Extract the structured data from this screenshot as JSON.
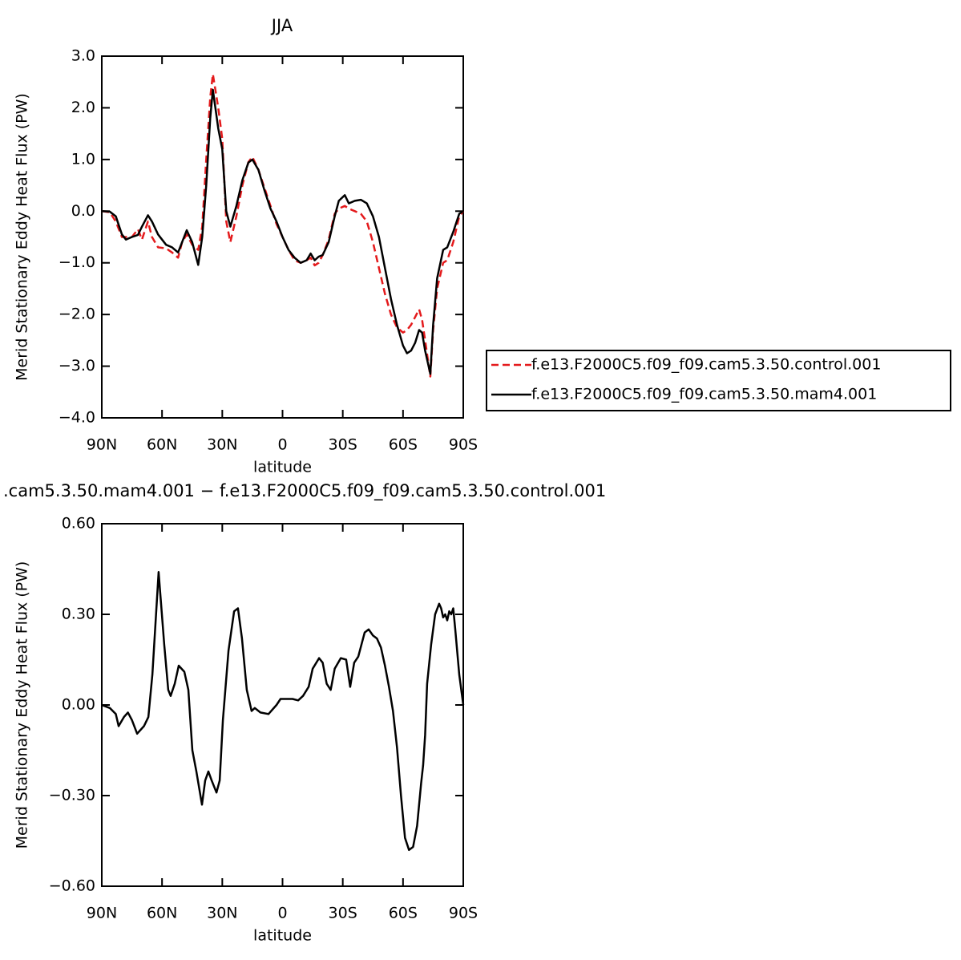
{
  "chart_data": [
    {
      "type": "line",
      "title": "JJA",
      "xlabel": "latitude",
      "ylabel": "Merid Stationary Eddy Heat Flux (PW)",
      "xlim": [
        90,
        -90
      ],
      "xticks": [
        {
          "value": 90,
          "label": "90N"
        },
        {
          "value": 60,
          "label": "60N"
        },
        {
          "value": 30,
          "label": "30N"
        },
        0,
        {
          "value": -30,
          "label": "30S"
        },
        {
          "value": -60,
          "label": "60S"
        },
        {
          "value": -90,
          "label": "90S"
        }
      ],
      "ylim": [
        -4,
        3
      ],
      "yticks": [
        {
          "value": 3,
          "label": "3.0"
        },
        {
          "value": 2,
          "label": "2.0"
        },
        {
          "value": 1,
          "label": "1.0"
        },
        {
          "value": 0,
          "label": "0.0"
        },
        {
          "value": -1,
          "label": "−1.0"
        },
        {
          "value": -2,
          "label": "−2.0"
        },
        {
          "value": -3,
          "label": "−3.0"
        },
        {
          "value": -4,
          "label": "−4.0"
        }
      ],
      "legend": "outside right",
      "x": [
        90,
        86,
        83,
        80,
        78,
        75,
        72,
        70,
        67,
        65,
        62,
        58,
        55,
        52,
        50,
        47.7,
        45,
        42,
        40,
        38,
        36,
        34.7,
        32,
        30,
        28,
        26,
        23,
        20,
        17,
        15,
        12,
        9,
        6,
        3,
        0,
        -3,
        -6,
        -9,
        -12,
        -14,
        -16,
        -18,
        -20,
        -23,
        -26,
        -28,
        -31,
        -33,
        -36,
        -39,
        -42,
        -45,
        -48,
        -51,
        -54,
        -57,
        -60,
        -62,
        -64,
        -66,
        -68,
        -69.5,
        -71,
        -73.6,
        -75,
        -77,
        -80,
        -82,
        -85,
        -88,
        -90
      ],
      "series": [
        {
          "name": "f.e13.F2000C5.f09_f09.cam5.3.50.control.001",
          "color": "#e41a1c",
          "linestyle": "dashed",
          "values": [
            0,
            -0.02,
            -0.2,
            -0.5,
            -0.5,
            -0.5,
            -0.35,
            -0.55,
            -0.2,
            -0.5,
            -0.7,
            -0.72,
            -0.8,
            -0.9,
            -0.6,
            -0.45,
            -0.65,
            -0.75,
            -0.3,
            1.0,
            2.2,
            2.65,
            2.0,
            1.4,
            -0.2,
            -0.6,
            -0.1,
            0.5,
            0.95,
            1.05,
            0.8,
            0.45,
            0.1,
            -0.25,
            -0.5,
            -0.75,
            -0.95,
            -1.0,
            -0.95,
            -0.9,
            -1.05,
            -1.0,
            -0.85,
            -0.55,
            -0.05,
            0.05,
            0.1,
            0.05,
            0.0,
            -0.05,
            -0.2,
            -0.6,
            -1.1,
            -1.6,
            -2.0,
            -2.25,
            -2.35,
            -2.3,
            -2.2,
            -2.05,
            -1.9,
            -2.1,
            -2.5,
            -3.2,
            -2.3,
            -1.5,
            -1.0,
            -0.95,
            -0.6,
            -0.1,
            0
          ]
        },
        {
          "name": "f.e13.F2000C5.f09_f09.cam5.3.50.mam4.001",
          "color": "#000000",
          "linestyle": "solid",
          "values": [
            0,
            -0.01,
            -0.1,
            -0.45,
            -0.55,
            -0.5,
            -0.46,
            -0.3,
            -0.08,
            -0.2,
            -0.45,
            -0.65,
            -0.7,
            -0.8,
            -0.6,
            -0.37,
            -0.6,
            -1.04,
            -0.5,
            0.5,
            1.8,
            2.35,
            1.6,
            1.2,
            0,
            -0.3,
            0.1,
            0.6,
            0.94,
            1.0,
            0.8,
            0.4,
            0.05,
            -0.2,
            -0.5,
            -0.75,
            -0.9,
            -1.0,
            -0.95,
            -0.82,
            -0.95,
            -0.88,
            -0.85,
            -0.6,
            -0.1,
            0.2,
            0.31,
            0.15,
            0.2,
            0.22,
            0.15,
            -0.1,
            -0.5,
            -1.1,
            -1.7,
            -2.2,
            -2.6,
            -2.75,
            -2.7,
            -2.55,
            -2.3,
            -2.35,
            -2.7,
            -3.15,
            -2.2,
            -1.3,
            -0.75,
            -0.7,
            -0.4,
            -0.05,
            0
          ]
        }
      ]
    },
    {
      "type": "line",
      "title": ".cam5.3.50.mam4.001 − f.e13.F2000C5.f09_f09.cam5.3.50.control.001",
      "xlabel": "latitude",
      "ylabel": "Merid Stationary Eddy Heat Flux (PW)",
      "xlim": [
        90,
        -90
      ],
      "xticks": [
        {
          "value": 90,
          "label": "90N"
        },
        {
          "value": 60,
          "label": "60N"
        },
        {
          "value": 30,
          "label": "30N"
        },
        0,
        {
          "value": -30,
          "label": "30S"
        },
        {
          "value": -60,
          "label": "60S"
        },
        {
          "value": -90,
          "label": "90S"
        }
      ],
      "ylim": [
        -0.6,
        0.6
      ],
      "yticks": [
        {
          "value": 0.6,
          "label": "0.60"
        },
        {
          "value": 0.3,
          "label": "0.30"
        },
        {
          "value": 0,
          "label": "0.00"
        },
        {
          "value": -0.3,
          "label": "−0.30"
        },
        {
          "value": -0.6,
          "label": "−0.60"
        }
      ],
      "color": "#000000",
      "x": [
        90,
        86,
        83,
        81.6,
        79,
        77,
        75,
        72.4,
        69,
        66.8,
        64.8,
        61.7,
        58.9,
        56.9,
        55.7,
        53.7,
        51.7,
        48.9,
        46.9,
        44.9,
        42.9,
        40.1,
        38.5,
        36.9,
        35.3,
        32.9,
        31.3,
        29.7,
        26.9,
        24.1,
        22.2,
        20.2,
        17.8,
        15.4,
        13.8,
        11,
        7,
        3,
        1,
        -1.8,
        -5,
        -7.8,
        -10.2,
        -13,
        -15,
        -18.2,
        -20,
        -22,
        -24,
        -26,
        -29,
        -31.7,
        -33.7,
        -35.7,
        -37.7,
        -40.9,
        -42.9,
        -45,
        -47,
        -49,
        -51,
        -53,
        -55,
        -57,
        -59,
        -61,
        -63,
        -65,
        -67,
        -69,
        -70,
        -71,
        -72,
        -74,
        -76,
        -78,
        -79,
        -80,
        -81,
        -82,
        -83,
        -84,
        -85,
        -86,
        -88,
        -90
      ],
      "values": [
        0,
        -0.01,
        -0.03,
        -0.07,
        -0.04,
        -0.025,
        -0.05,
        -0.095,
        -0.07,
        -0.04,
        0.1,
        0.44,
        0.2,
        0.05,
        0.03,
        0.07,
        0.13,
        0.11,
        0.05,
        -0.15,
        -0.22,
        -0.33,
        -0.25,
        -0.22,
        -0.25,
        -0.29,
        -0.25,
        -0.05,
        0.18,
        0.31,
        0.32,
        0.22,
        0.05,
        -0.02,
        -0.01,
        -0.025,
        -0.03,
        0.0,
        0.02,
        0.02,
        0.02,
        0.015,
        0.03,
        0.06,
        0.12,
        0.155,
        0.14,
        0.07,
        0.05,
        0.12,
        0.155,
        0.15,
        0.06,
        0.14,
        0.16,
        0.24,
        0.25,
        0.23,
        0.22,
        0.19,
        0.13,
        0.06,
        -0.02,
        -0.14,
        -0.3,
        -0.44,
        -0.48,
        -0.47,
        -0.4,
        -0.26,
        -0.2,
        -0.1,
        0.07,
        0.2,
        0.3,
        0.335,
        0.32,
        0.29,
        0.3,
        0.28,
        0.31,
        0.3,
        0.32,
        0.25,
        0.1,
        0
      ]
    }
  ]
}
